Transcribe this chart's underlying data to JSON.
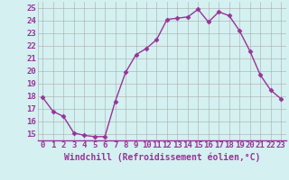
{
  "x": [
    0,
    1,
    2,
    3,
    4,
    5,
    6,
    7,
    8,
    9,
    10,
    11,
    12,
    13,
    14,
    15,
    16,
    17,
    18,
    19,
    20,
    21,
    22,
    23
  ],
  "y": [
    17.9,
    16.8,
    16.4,
    15.1,
    14.9,
    14.8,
    14.8,
    17.6,
    19.9,
    21.3,
    21.8,
    22.5,
    24.1,
    24.2,
    24.3,
    24.9,
    23.9,
    24.7,
    24.4,
    23.2,
    21.6,
    19.7,
    18.5,
    17.8
  ],
  "line_color": "#993399",
  "marker": "D",
  "markersize": 2.5,
  "linewidth": 1.0,
  "xlabel": "Windchill (Refroidissement éolien,°C)",
  "xlabel_fontsize": 7,
  "xtick_labels": [
    "0",
    "1",
    "2",
    "3",
    "4",
    "5",
    "6",
    "7",
    "8",
    "9",
    "10",
    "11",
    "12",
    "13",
    "14",
    "15",
    "16",
    "17",
    "18",
    "19",
    "20",
    "21",
    "22",
    "23"
  ],
  "ytick_values": [
    15,
    16,
    17,
    18,
    19,
    20,
    21,
    22,
    23,
    24,
    25
  ],
  "ylim": [
    14.5,
    25.5
  ],
  "xlim": [
    -0.5,
    23.5
  ],
  "bg_color": "#d4f0f0",
  "grid_color": "#aaaaaa",
  "tick_fontsize": 6.5,
  "tick_color": "#993399"
}
